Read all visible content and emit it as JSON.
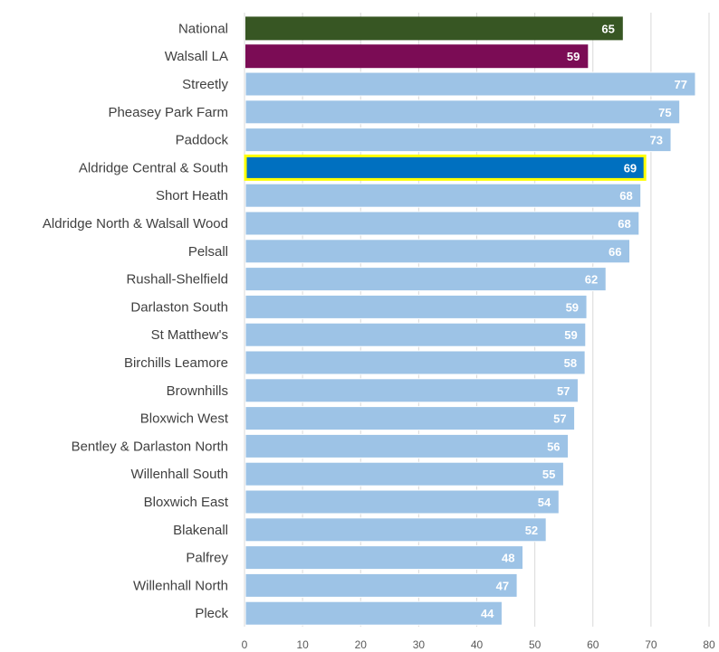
{
  "chart_data": {
    "type": "bar",
    "orientation": "horizontal",
    "title": "",
    "xlabel": "",
    "ylabel": "",
    "xlim": [
      0,
      80
    ],
    "ticks": [
      0,
      10,
      20,
      30,
      40,
      50,
      60,
      70,
      80
    ],
    "grid": true,
    "legend": "none",
    "categories": [
      "National",
      "Walsall LA",
      "Streetly",
      "Pheasey Park Farm",
      "Paddock",
      "Aldridge Central & South",
      "Short Heath",
      "Aldridge North & Walsall Wood",
      "Pelsall",
      "Rushall-Shelfield",
      "Darlaston South",
      "St Matthew's",
      "Birchills Leamore",
      "Brownhills",
      "Bloxwich West",
      "Bentley & Darlaston North",
      "Willenhall South",
      "Bloxwich East",
      "Blakenall",
      "Palfrey",
      "Willenhall North",
      "Pleck"
    ],
    "values": [
      65,
      59,
      77,
      75,
      73,
      69,
      68,
      68,
      66,
      62,
      59,
      59,
      58,
      57,
      57,
      56,
      55,
      54,
      52,
      48,
      47,
      44
    ],
    "plot_values": [
      65,
      59,
      77.5,
      74.8,
      73.3,
      68.8,
      68.1,
      67.8,
      66.2,
      62.1,
      58.8,
      58.6,
      58.5,
      57.3,
      56.7,
      55.6,
      54.8,
      54.0,
      51.8,
      47.8,
      46.8,
      44.2
    ],
    "colors": {
      "default": "#9dc3e6",
      "national": "#375623",
      "la": "#7b0c55",
      "highlight": "#0070c0",
      "highlight_border": "#ffff00",
      "grid": "#d9d9d9"
    },
    "highlight_index": 5
  }
}
